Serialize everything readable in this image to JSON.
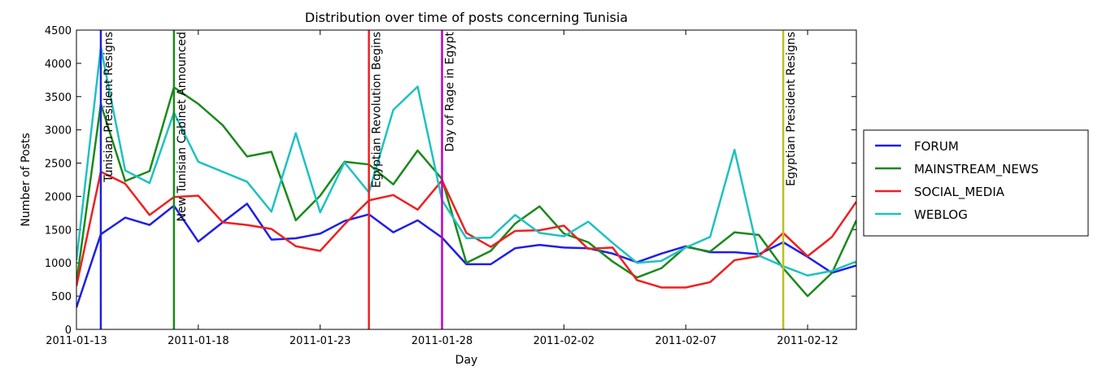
{
  "chart_data": {
    "type": "line",
    "title": "Distribution over time of posts concerning Tunisia",
    "xlabel": "Day",
    "ylabel": "Number of Posts",
    "x_start": "2011-01-13",
    "ylim": [
      0,
      4500
    ],
    "yticks": [
      0,
      500,
      1000,
      1500,
      2000,
      2500,
      3000,
      3500,
      4000,
      4500
    ],
    "xticks": [
      "2011-01-13",
      "2011-01-18",
      "2011-01-23",
      "2011-01-28",
      "2011-02-02",
      "2011-02-07",
      "2011-02-12"
    ],
    "xlim": [
      "2011-01-13",
      "2011-02-14"
    ],
    "x": [
      "2011-01-13",
      "2011-01-14",
      "2011-01-15",
      "2011-01-16",
      "2011-01-17",
      "2011-01-18",
      "2011-01-19",
      "2011-01-20",
      "2011-01-21",
      "2011-01-22",
      "2011-01-23",
      "2011-01-24",
      "2011-01-25",
      "2011-01-26",
      "2011-01-27",
      "2011-01-28",
      "2011-01-29",
      "2011-01-30",
      "2011-01-31",
      "2011-02-01",
      "2011-02-02",
      "2011-02-03",
      "2011-02-04",
      "2011-02-05",
      "2011-02-06",
      "2011-02-07",
      "2011-02-08",
      "2011-02-09",
      "2011-02-10",
      "2011-02-11",
      "2011-02-12",
      "2011-02-13",
      "2011-02-14"
    ],
    "series": [
      {
        "name": "FORUM",
        "color": "#1f1fe6",
        "values": [
          330,
          1430,
          1680,
          1570,
          1860,
          1320,
          1610,
          1890,
          1350,
          1370,
          1440,
          1630,
          1730,
          1460,
          1640,
          1380,
          980,
          980,
          1220,
          1270,
          1230,
          1220,
          1140,
          1010,
          1140,
          1250,
          1160,
          1160,
          1130,
          1310,
          1090,
          850,
          960
        ]
      },
      {
        "name": "MAINSTREAM_NEWS",
        "color": "#1a8a1a",
        "values": [
          700,
          3390,
          2230,
          2380,
          3640,
          3390,
          3070,
          2600,
          2670,
          1640,
          2010,
          2520,
          2480,
          2180,
          2690,
          2260,
          1000,
          1180,
          1590,
          1850,
          1440,
          1310,
          1020,
          780,
          920,
          1240,
          1170,
          1460,
          1420,
          920,
          500,
          850,
          1640
        ]
      },
      {
        "name": "SOCIAL_MEDIA",
        "color": "#ee2020",
        "values": [
          650,
          2370,
          2190,
          1720,
          1990,
          2010,
          1610,
          1570,
          1510,
          1250,
          1180,
          1580,
          1940,
          2020,
          1800,
          2240,
          1450,
          1240,
          1480,
          1490,
          1560,
          1210,
          1230,
          740,
          630,
          630,
          710,
          1040,
          1100,
          1450,
          1100,
          1390,
          1920
        ]
      },
      {
        "name": "WEBLOG",
        "color": "#1fc1c1",
        "values": [
          1040,
          4240,
          2390,
          2200,
          3260,
          2520,
          2370,
          2220,
          1770,
          2950,
          1760,
          2510,
          2060,
          3300,
          3650,
          1940,
          1370,
          1380,
          1720,
          1450,
          1400,
          1620,
          1300,
          1000,
          1030,
          1230,
          1390,
          2700,
          1110,
          950,
          810,
          880,
          1020
        ]
      }
    ],
    "events": [
      {
        "date": "2011-01-14",
        "label": "Tunisian President Resigns",
        "color": "#1f1fe6"
      },
      {
        "date": "2011-01-17",
        "label": "New Tunisian Cabinet Announced",
        "color": "#1a8a1a"
      },
      {
        "date": "2011-01-25",
        "label": "Egyptian Revolution Begins",
        "color": "#ee2020"
      },
      {
        "date": "2011-01-28",
        "label": "Day of Rage in Egypt",
        "color": "#bf00bf"
      },
      {
        "date": "2011-02-11",
        "label": "Egyptian President Resigns",
        "color": "#bfbf1f"
      }
    ],
    "legend": "right",
    "grid": false
  }
}
